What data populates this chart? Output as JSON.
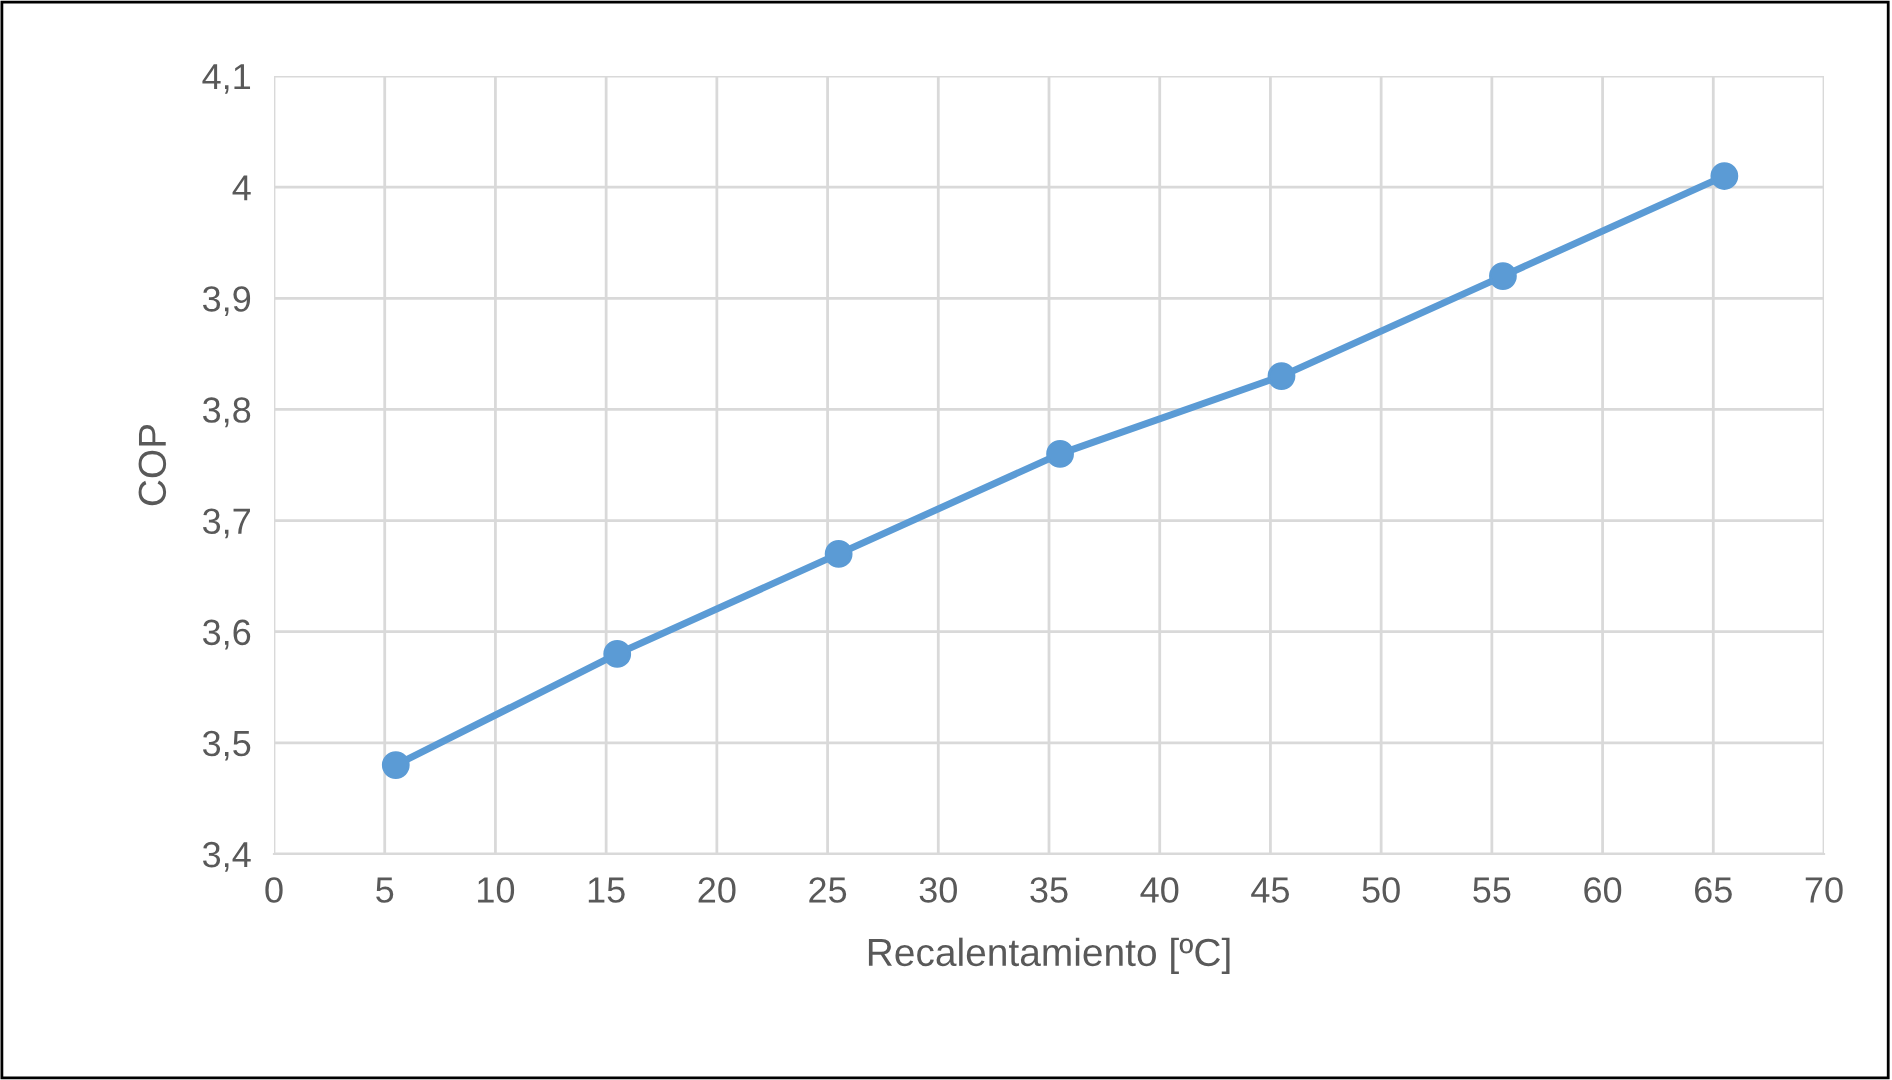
{
  "chart_data": {
    "type": "line",
    "xlabel": "Recalentamiento [ºC]",
    "ylabel": "COP",
    "x": [
      5.5,
      15.5,
      25.5,
      35.5,
      45.5,
      55.5,
      65.5
    ],
    "series": [
      {
        "color": "#5b9bd5",
        "values": [
          3.48,
          3.58,
          3.67,
          3.76,
          3.83,
          3.92,
          4.01
        ]
      }
    ],
    "xlim": [
      0,
      70
    ],
    "xticks": [
      0,
      5,
      10,
      15,
      20,
      25,
      30,
      35,
      40,
      45,
      50,
      55,
      60,
      65,
      70
    ],
    "ylim": [
      3.4,
      4.1
    ],
    "yticks": [
      {
        "value": 3.4,
        "label": "3,4"
      },
      {
        "value": 3.5,
        "label": "3,5"
      },
      {
        "value": 3.6,
        "label": "3,6"
      },
      {
        "value": 3.7,
        "label": "3,7"
      },
      {
        "value": 3.8,
        "label": "3,8"
      },
      {
        "value": 3.9,
        "label": "3,9"
      },
      {
        "value": 4,
        "label": "4"
      },
      {
        "value": 4.1,
        "label": "4,1"
      }
    ],
    "grid": true,
    "marker": "circle",
    "line_style": "solid"
  }
}
